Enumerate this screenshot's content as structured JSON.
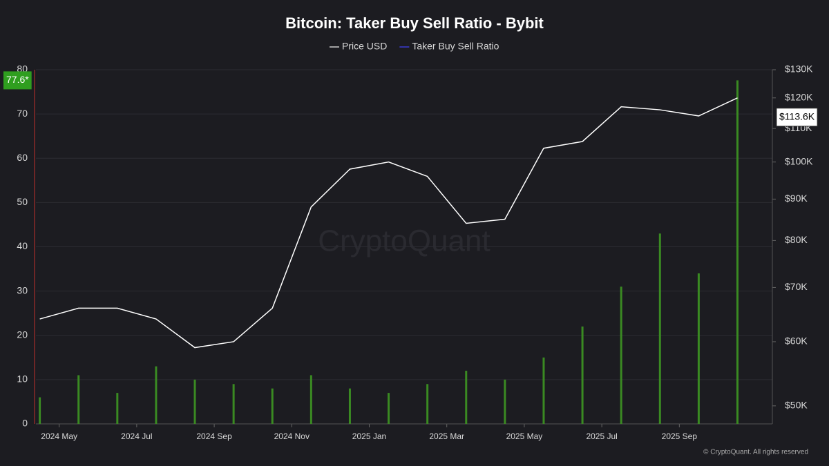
{
  "chart_data": {
    "type": "bar-line",
    "title": "Bitcoin: Taker Buy Sell Ratio - Bybit",
    "x": [
      "2024-04",
      "2024-05",
      "2024-06",
      "2024-07",
      "2024-08",
      "2024-09",
      "2024-10",
      "2024-11",
      "2024-12",
      "2025-01",
      "2025-02",
      "2025-03",
      "2025-04",
      "2025-05",
      "2025-06",
      "2025-07",
      "2025-08",
      "2025-09",
      "2025-10"
    ],
    "xticks": [
      {
        "value": "2024-05",
        "label": "2024 May"
      },
      {
        "value": "2024-07",
        "label": "2024 Jul"
      },
      {
        "value": "2024-09",
        "label": "2024 Sep"
      },
      {
        "value": "2024-11",
        "label": "2024 Nov"
      },
      {
        "value": "2025-01",
        "label": "2025 Jan"
      },
      {
        "value": "2025-03",
        "label": "2025 Mar"
      },
      {
        "value": "2025-05",
        "label": "2025 May"
      },
      {
        "value": "2025-07",
        "label": "2025 Jul"
      },
      {
        "value": "2025-09",
        "label": "2025 Sep"
      }
    ],
    "series": [
      {
        "name": "Price USD",
        "color": "#ffffff",
        "legend_color": "#cfcfcf",
        "axis": "y2",
        "kind": "line",
        "values": [
          64000,
          66000,
          66000,
          64000,
          59000,
          60000,
          66000,
          88000,
          98000,
          100000,
          96000,
          84000,
          85000,
          104000,
          106000,
          117000,
          116000,
          114000,
          120000
        ]
      },
      {
        "name": "Taker Buy Sell Ratio",
        "color": "#3a8a22",
        "legend_color": "#3b3bd6",
        "axis": "y",
        "kind": "bar",
        "values": [
          6,
          11,
          7,
          13,
          10,
          9,
          8,
          11,
          8,
          7,
          9,
          12,
          10,
          15,
          22,
          31,
          43,
          34,
          77.6
        ]
      }
    ],
    "ylim": [
      0,
      80
    ],
    "yticks": [
      0,
      10,
      20,
      30,
      40,
      50,
      60,
      70,
      80
    ],
    "y2lim": [
      47500,
      130000
    ],
    "y2log": true,
    "y2ticks": [
      {
        "value": 50000,
        "label": "$50K"
      },
      {
        "value": 60000,
        "label": "$60K"
      },
      {
        "value": 70000,
        "label": "$70K"
      },
      {
        "value": 80000,
        "label": "$80K"
      },
      {
        "value": 90000,
        "label": "$90K"
      },
      {
        "value": 100000,
        "label": "$100K"
      },
      {
        "value": 110000,
        "label": "$110K"
      },
      {
        "value": 120000,
        "label": "$120K"
      },
      {
        "value": 130000,
        "label": "$130K"
      }
    ],
    "grid": true,
    "annotations": [
      {
        "text": "77.6*",
        "value": 77.6,
        "axis": "y",
        "color": "#2f9e1f"
      },
      {
        "text": "$113.6K",
        "value": 113600,
        "axis": "y2",
        "color": "#ffffff"
      }
    ],
    "watermark": "CryptoQuant",
    "footer": "© CryptoQuant. All rights reserved"
  }
}
